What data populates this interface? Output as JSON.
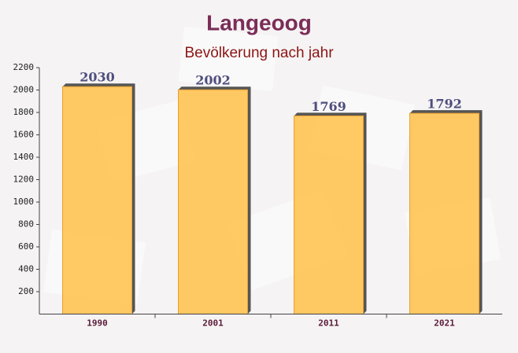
{
  "chart_data": {
    "type": "bar",
    "title": "Langeoog",
    "subtitle": "Bevölkerung nach jahr",
    "categories": [
      "1990",
      "2001",
      "2011",
      "2021"
    ],
    "values": [
      2030,
      2002,
      1769,
      1792
    ],
    "color": "#ffc24f",
    "ylim": [
      0,
      2200
    ],
    "yticks": [
      200,
      400,
      600,
      800,
      1000,
      1200,
      1400,
      1600,
      1800,
      2000,
      2200
    ]
  }
}
